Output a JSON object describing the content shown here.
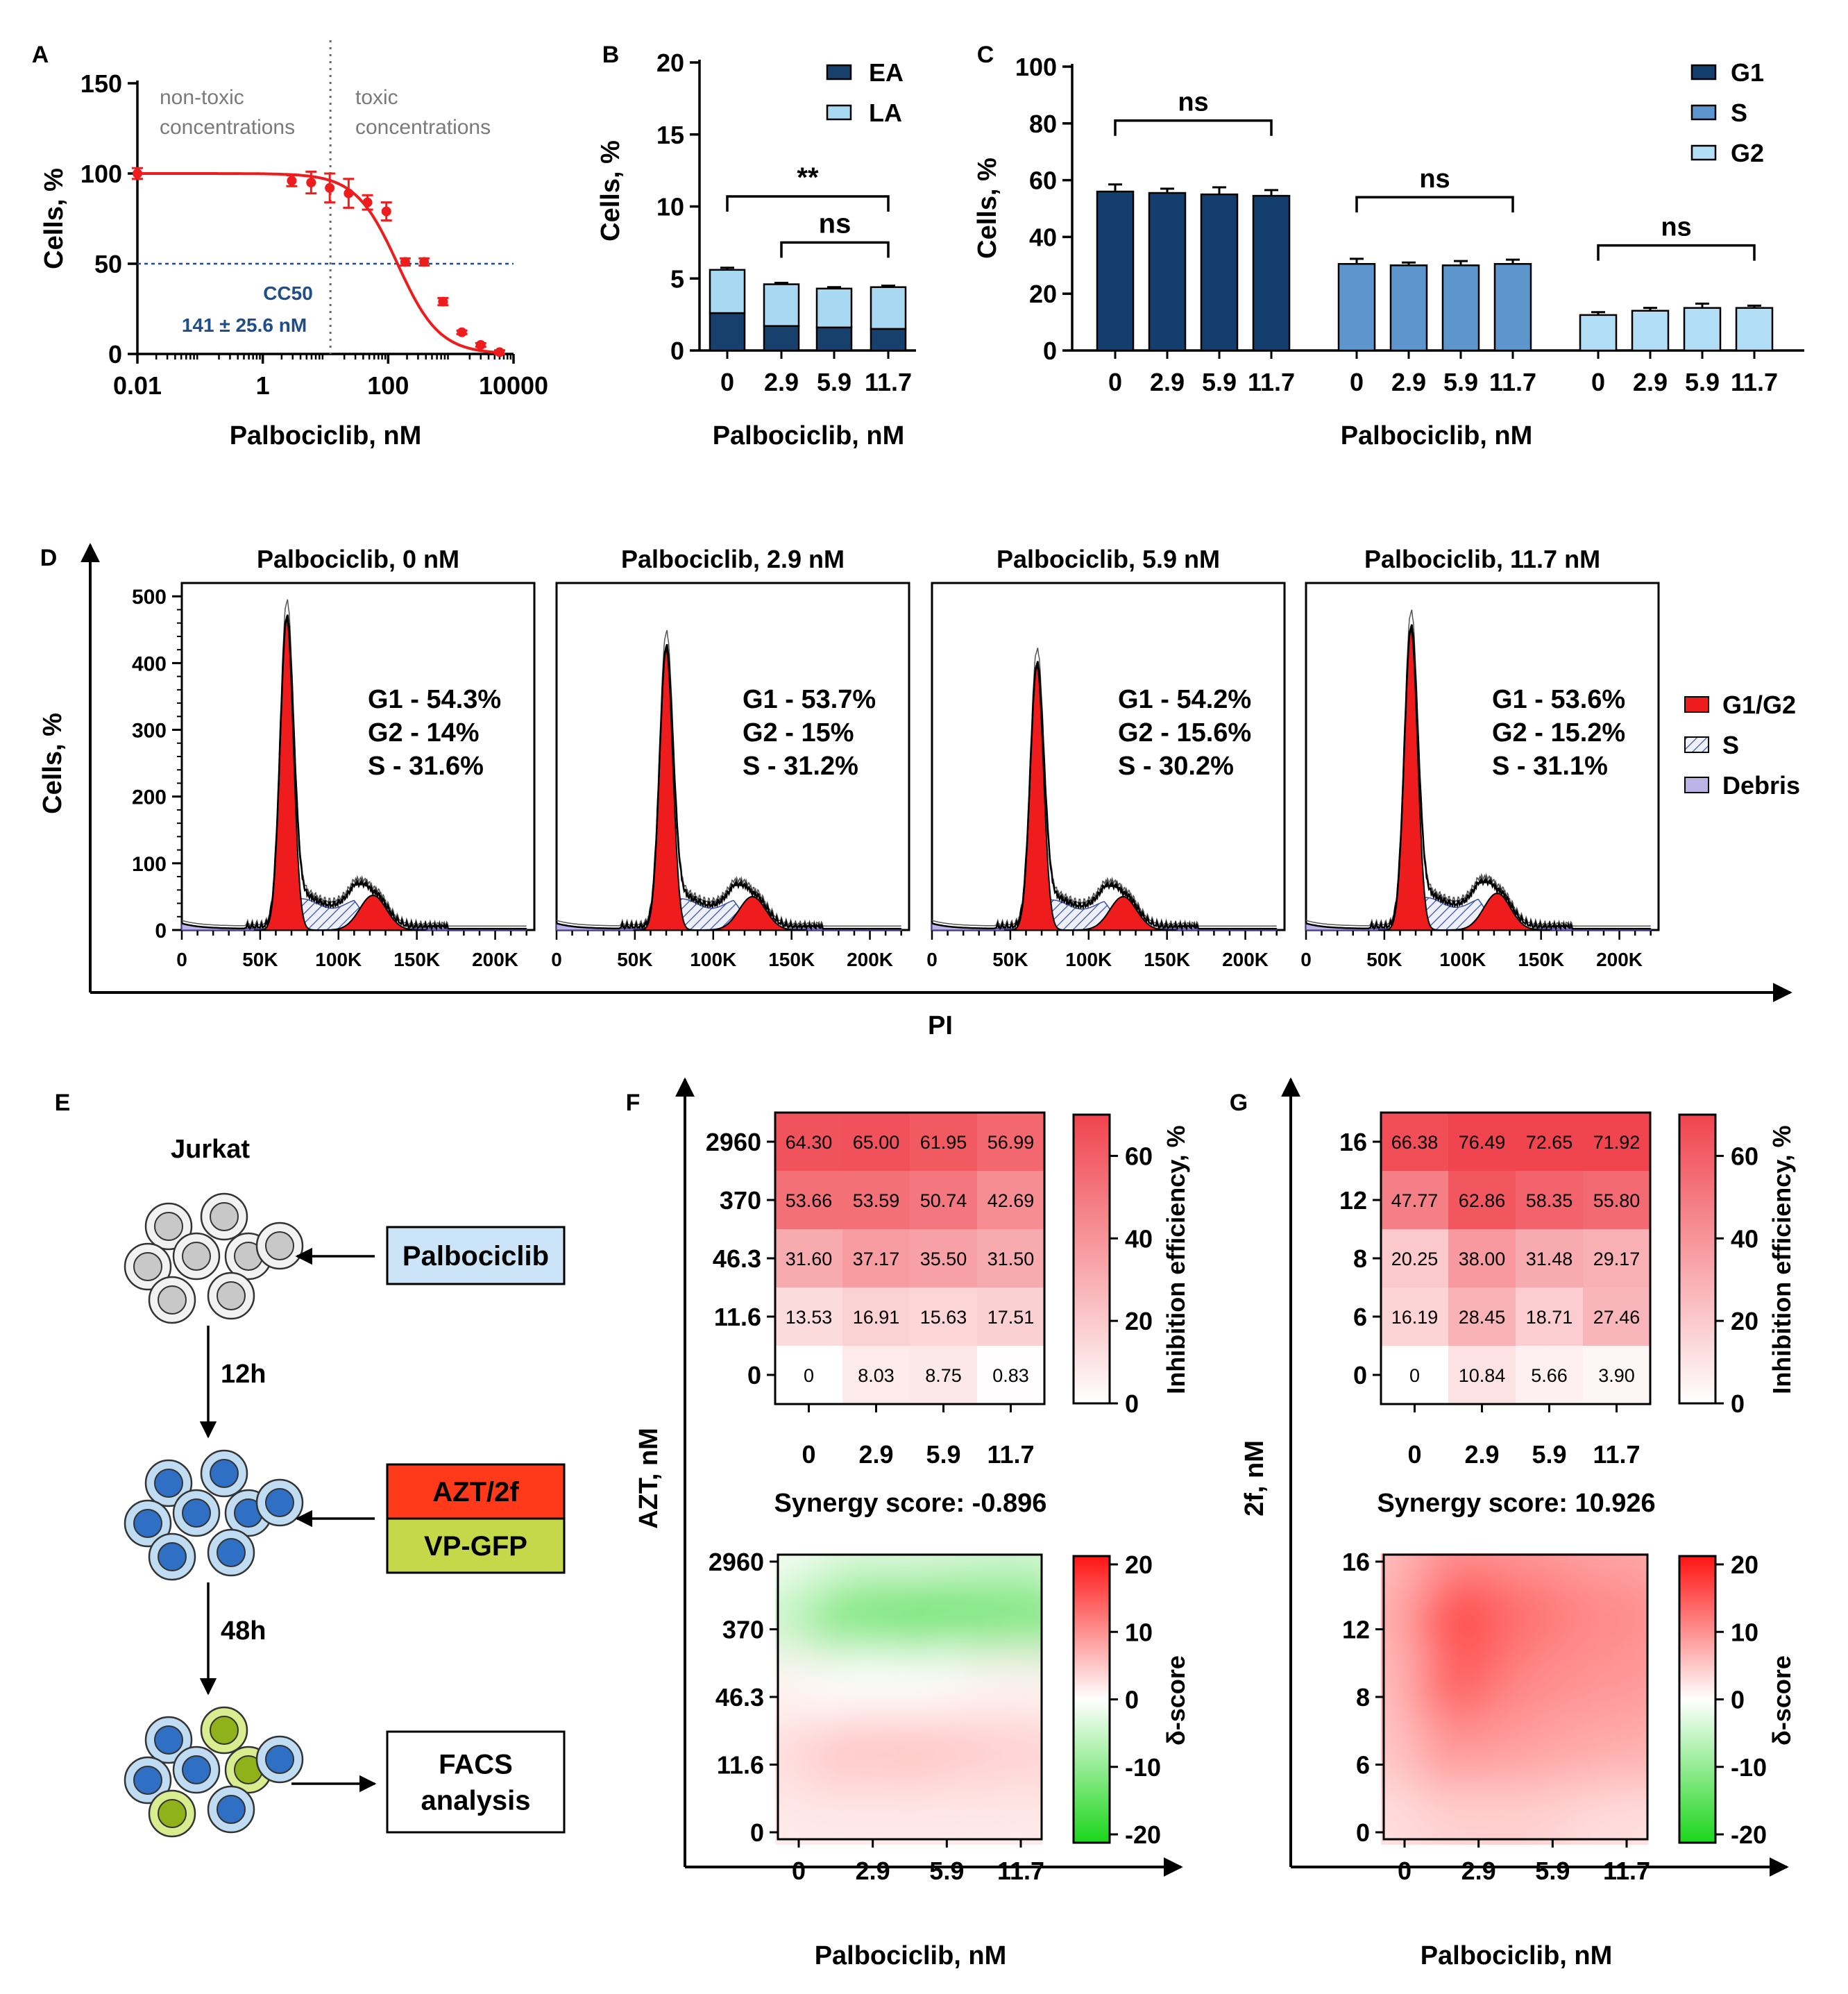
{
  "colors": {
    "ea": "#17406d",
    "la": "#a9d8f3",
    "g1": "#143e6e",
    "s": "#5d96cc",
    "g2": "#b2def6",
    "red": "#ee1c1c",
    "blue_text": "#1e4e8a",
    "gray_text": "#7a7a7a",
    "green": "#22d022",
    "debris": "#bcb4e6"
  },
  "chart_data": [
    {
      "panel": "A",
      "type": "scatter",
      "title": "",
      "xlabel": "Palbociclib, nM",
      "ylabel": "Cells, %",
      "xscale": "log",
      "xlim": [
        0.01,
        10000
      ],
      "ylim": [
        0,
        150
      ],
      "xticks": [
        "0.01",
        "1",
        "100",
        "10000"
      ],
      "yticks": [
        "0",
        "50",
        "100",
        "150"
      ],
      "x": [
        0.01,
        2.9,
        5.9,
        11.7,
        23.4,
        46.8,
        93.6,
        187,
        375,
        750,
        1500,
        3000,
        6000
      ],
      "y": [
        100,
        96,
        95,
        92,
        89,
        84,
        79,
        51,
        51,
        29,
        12,
        5,
        1
      ],
      "yerr": [
        3,
        3,
        6,
        8,
        8,
        4,
        5,
        2,
        2,
        2,
        1,
        1,
        1
      ],
      "fit": {
        "top": 100,
        "bottom": 0,
        "cc50_nM": 141,
        "hill": 1.3
      },
      "annotations": {
        "left": [
          "non-toxic",
          "concentrations"
        ],
        "right": [
          "toxic",
          "concentrations"
        ],
        "cc50_label": "CC50",
        "cc50_value": "141 ± 25.6 nM"
      },
      "threshold_x": 12,
      "hline_y": 50
    },
    {
      "panel": "B",
      "type": "bar",
      "stacked": true,
      "xlabel": "Palbociclib, nM",
      "ylabel": "Cells, %",
      "ylim": [
        0,
        20
      ],
      "yticks": [
        "0",
        "5",
        "10",
        "15",
        "20"
      ],
      "categories": [
        "0",
        "2.9",
        "5.9",
        "11.7"
      ],
      "series": [
        {
          "name": "EA",
          "values": [
            2.6,
            1.7,
            1.6,
            1.5
          ]
        },
        {
          "name": "LA",
          "values": [
            3.0,
            2.9,
            2.7,
            2.9
          ]
        }
      ],
      "total_err": [
        0.15,
        0.1,
        0.1,
        0.1
      ],
      "significance": [
        {
          "from": 0,
          "to": 3,
          "label": "**",
          "y": 10.7
        },
        {
          "from": 1,
          "to": 3,
          "label": "ns",
          "y": 7.5
        }
      ]
    },
    {
      "panel": "C",
      "type": "bar",
      "xlabel": "Palbociclib, nM",
      "ylabel": "Cells, %",
      "ylim": [
        0,
        100
      ],
      "yticks": [
        "0",
        "20",
        "40",
        "60",
        "80",
        "100"
      ],
      "categories": [
        "0",
        "2.9",
        "5.9",
        "11.7"
      ],
      "series": [
        {
          "name": "G1",
          "values": [
            56,
            55.5,
            55,
            54.5
          ],
          "err": [
            2.5,
            1.5,
            2.5,
            2
          ]
        },
        {
          "name": "S",
          "values": [
            30.5,
            30,
            30,
            30.5
          ],
          "err": [
            1.8,
            1,
            1.5,
            1.5
          ]
        },
        {
          "name": "G2",
          "values": [
            12.5,
            14,
            15,
            15
          ],
          "err": [
            1,
            1,
            1.5,
            0.8
          ]
        }
      ],
      "significance": [
        {
          "group": "G1",
          "label": "ns",
          "y": 81
        },
        {
          "group": "S",
          "label": "ns",
          "y": 54
        },
        {
          "group": "G2",
          "label": "ns",
          "y": 37
        }
      ]
    },
    {
      "panel": "D",
      "type": "area",
      "xlabel": "PI",
      "ylabel": "Cells, %",
      "ylim": [
        0,
        520
      ],
      "yticks": [
        "0",
        "100",
        "200",
        "300",
        "400",
        "500"
      ],
      "xlim": [
        0,
        225000
      ],
      "xticks": [
        "0",
        "50K",
        "100K",
        "150K",
        "200K"
      ],
      "legend": [
        "G1/G2",
        "S",
        "Debris"
      ],
      "histograms": [
        {
          "title": "Palbociclib, 0 nM",
          "stats": [
            "G1 - 54.3%",
            "G2 - 14%",
            "S - 31.6%"
          ],
          "g1_pos": 67000,
          "g1_height": 465,
          "g2_pos": 122000,
          "g2_height": 52,
          "s_height": 52
        },
        {
          "title": "Palbociclib, 2.9 nM",
          "stats": [
            "G1 - 53.7%",
            "G2 - 15%",
            "S - 31.2%"
          ],
          "g1_pos": 70000,
          "g1_height": 420,
          "g2_pos": 125000,
          "g2_height": 50,
          "s_height": 52
        },
        {
          "title": "Palbociclib, 5.9 nM",
          "stats": [
            "G1 - 54.2%",
            "G2 - 15.6%",
            "S - 30.2%"
          ],
          "g1_pos": 67000,
          "g1_height": 395,
          "g2_pos": 122000,
          "g2_height": 50,
          "s_height": 50
        },
        {
          "title": "Palbociclib, 11.7 nM",
          "stats": [
            "G1 - 53.6%",
            "G2 - 15.2%",
            "S - 31.1%"
          ],
          "g1_pos": 67000,
          "g1_height": 450,
          "g2_pos": 122000,
          "g2_height": 55,
          "s_height": 54
        }
      ]
    },
    {
      "panel": "F",
      "type": "heatmap",
      "xlabel": "Palbociclib, nM",
      "ylabel": "AZT, nM",
      "x": [
        "0",
        "2.9",
        "5.9",
        "11.7"
      ],
      "y": [
        "2960",
        "370",
        "46.3",
        "11.6",
        "0"
      ],
      "values": [
        [
          "64.30",
          "65.00",
          "61.95",
          "56.99"
        ],
        [
          "53.66",
          "53.59",
          "50.74",
          "42.69"
        ],
        [
          "31.60",
          "37.17",
          "35.50",
          "31.50"
        ],
        [
          "13.53",
          "16.91",
          "15.63",
          "17.51"
        ],
        [
          "0",
          "8.03",
          "8.75",
          "0.83"
        ]
      ],
      "colorbar_label": "Inhibition efficiency, %",
      "colorbar_ticks": [
        "0",
        "20",
        "40",
        "60"
      ],
      "synergy_label": "Synergy score: -0.896",
      "delta_label": "δ-score",
      "delta_ticks": [
        "20",
        "10",
        "0",
        "-10",
        "-20"
      ],
      "delta_y": [
        "2960",
        "370",
        "46.3",
        "11.6",
        "0"
      ],
      "delta_values": [
        [
          -1,
          -3,
          -3,
          -4
        ],
        [
          -5,
          -12,
          -13,
          -12
        ],
        [
          1,
          0,
          0,
          1
        ],
        [
          3,
          5,
          5,
          4
        ],
        [
          2,
          2,
          2,
          2
        ]
      ]
    },
    {
      "panel": "G",
      "type": "heatmap",
      "xlabel": "Palbociclib, nM",
      "ylabel": "2f, nM",
      "x": [
        "0",
        "2.9",
        "5.9",
        "11.7"
      ],
      "y": [
        "16",
        "12",
        "8",
        "6",
        "0"
      ],
      "values": [
        [
          "66.38",
          "76.49",
          "72.65",
          "71.92"
        ],
        [
          "47.77",
          "62.86",
          "58.35",
          "55.80"
        ],
        [
          "20.25",
          "38.00",
          "31.48",
          "29.17"
        ],
        [
          "16.19",
          "28.45",
          "18.71",
          "27.46"
        ],
        [
          "0",
          "10.84",
          "5.66",
          "3.90"
        ]
      ],
      "colorbar_label": "Inhibition efficiency, %",
      "colorbar_ticks": [
        "0",
        "20",
        "40",
        "60"
      ],
      "synergy_label": "Synergy score: 10.926",
      "delta_label": "δ-score",
      "delta_ticks": [
        "20",
        "10",
        "0",
        "-10",
        "-20"
      ],
      "delta_y": [
        "16",
        "12",
        "8",
        "6",
        "0"
      ],
      "delta_values": [
        [
          6,
          10,
          9,
          8
        ],
        [
          7,
          16,
          12,
          10
        ],
        [
          6,
          14,
          10,
          9
        ],
        [
          5,
          9,
          8,
          7
        ],
        [
          3,
          4,
          4,
          3
        ]
      ]
    }
  ],
  "panels": {
    "A": "A",
    "B": "B",
    "C": "C",
    "D": "D",
    "E": "E",
    "F": "F",
    "G": "G"
  },
  "schema_e": {
    "cell_line": "Jurkat",
    "step1": "Palbociclib",
    "time1": "12h",
    "step2a": "AZT/2f",
    "step2b": "VP-GFP",
    "time2": "48h",
    "step3": [
      "FACS",
      "analysis"
    ]
  }
}
